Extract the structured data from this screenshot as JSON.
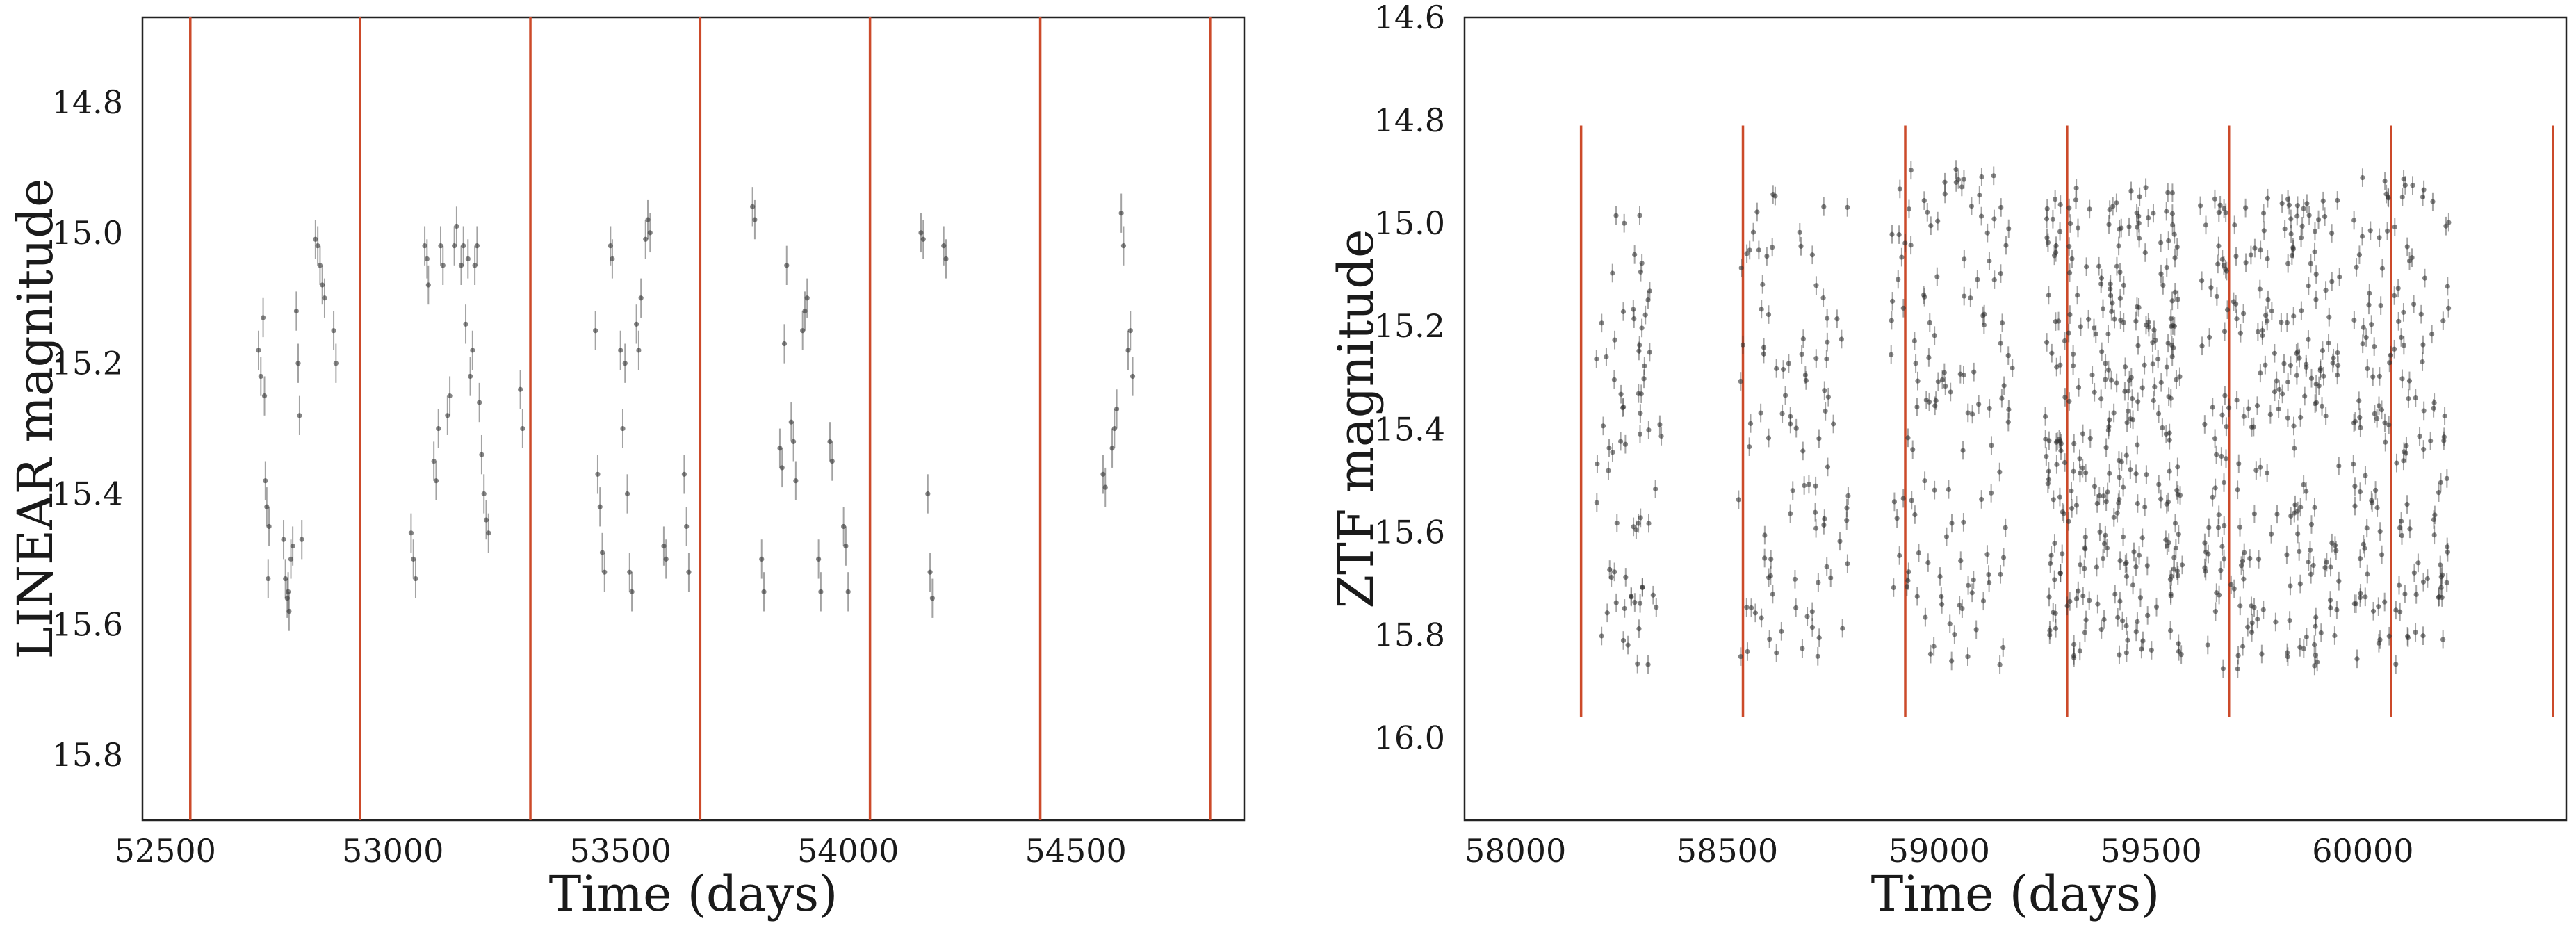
{
  "chart_data": [
    {
      "type": "scatter",
      "id": "linear",
      "xlabel": "Time (days)",
      "ylabel": "LINEAR magnitude",
      "xlim": [
        52450,
        54870
      ],
      "ylim": [
        15.9,
        14.67
      ],
      "y_inverted": true,
      "grid": false,
      "legend": "none",
      "xticks": [
        52500,
        53000,
        53500,
        54000,
        54500
      ],
      "yticks": [
        14.8,
        15.0,
        15.2,
        15.4,
        15.6,
        15.8
      ],
      "xtick_labels": [
        "52500",
        "53000",
        "53500",
        "54000",
        "54500"
      ],
      "ytick_labels": [
        "14.8",
        "15.0",
        "15.2",
        "15.4",
        "15.6",
        "15.8"
      ],
      "vlines": [
        52555,
        52928,
        53302,
        53675,
        54048,
        54422,
        54795
      ],
      "vline_color": "#cc4a2a",
      "point_color": "#333333",
      "err": 0.03,
      "points": [
        [
          52705,
          15.18
        ],
        [
          52710,
          15.22
        ],
        [
          52715,
          15.13
        ],
        [
          52718,
          15.25
        ],
        [
          52720,
          15.38
        ],
        [
          52723,
          15.42
        ],
        [
          52726,
          15.53
        ],
        [
          52728,
          15.45
        ],
        [
          52760,
          15.47
        ],
        [
          52764,
          15.53
        ],
        [
          52768,
          15.56
        ],
        [
          52770,
          15.55
        ],
        [
          52772,
          15.58
        ],
        [
          52776,
          15.5
        ],
        [
          52780,
          15.48
        ],
        [
          52788,
          15.12
        ],
        [
          52792,
          15.2
        ],
        [
          52795,
          15.28
        ],
        [
          52800,
          15.47
        ],
        [
          52830,
          15.01
        ],
        [
          52835,
          15.02
        ],
        [
          52840,
          15.05
        ],
        [
          52845,
          15.08
        ],
        [
          52850,
          15.1
        ],
        [
          52870,
          15.15
        ],
        [
          52875,
          15.2
        ],
        [
          53040,
          15.46
        ],
        [
          53045,
          15.5
        ],
        [
          53050,
          15.53
        ],
        [
          53070,
          15.02
        ],
        [
          53075,
          15.04
        ],
        [
          53078,
          15.08
        ],
        [
          53090,
          15.35
        ],
        [
          53095,
          15.38
        ],
        [
          53100,
          15.3
        ],
        [
          53105,
          15.02
        ],
        [
          53110,
          15.05
        ],
        [
          53120,
          15.28
        ],
        [
          53125,
          15.25
        ],
        [
          53135,
          15.02
        ],
        [
          53140,
          14.99
        ],
        [
          53150,
          15.05
        ],
        [
          53155,
          15.02
        ],
        [
          53160,
          15.14
        ],
        [
          53165,
          15.04
        ],
        [
          53170,
          15.22
        ],
        [
          53175,
          15.18
        ],
        [
          53180,
          15.05
        ],
        [
          53185,
          15.02
        ],
        [
          53190,
          15.26
        ],
        [
          53195,
          15.34
        ],
        [
          53200,
          15.4
        ],
        [
          53205,
          15.44
        ],
        [
          53210,
          15.46
        ],
        [
          53280,
          15.24
        ],
        [
          53285,
          15.3
        ],
        [
          53445,
          15.15
        ],
        [
          53450,
          15.37
        ],
        [
          53455,
          15.42
        ],
        [
          53460,
          15.49
        ],
        [
          53465,
          15.52
        ],
        [
          53478,
          15.02
        ],
        [
          53482,
          15.04
        ],
        [
          53500,
          15.18
        ],
        [
          53505,
          15.3
        ],
        [
          53510,
          15.2
        ],
        [
          53515,
          15.4
        ],
        [
          53520,
          15.52
        ],
        [
          53525,
          15.55
        ],
        [
          53535,
          15.14
        ],
        [
          53540,
          15.18
        ],
        [
          53545,
          15.1
        ],
        [
          53555,
          15.01
        ],
        [
          53560,
          14.98
        ],
        [
          53565,
          15.0
        ],
        [
          53595,
          15.48
        ],
        [
          53600,
          15.5
        ],
        [
          53640,
          15.37
        ],
        [
          53645,
          15.45
        ],
        [
          53650,
          15.52
        ],
        [
          53790,
          14.96
        ],
        [
          53795,
          14.98
        ],
        [
          53810,
          15.5
        ],
        [
          53815,
          15.55
        ],
        [
          53850,
          15.33
        ],
        [
          53855,
          15.36
        ],
        [
          53860,
          15.17
        ],
        [
          53865,
          15.05
        ],
        [
          53875,
          15.29
        ],
        [
          53880,
          15.32
        ],
        [
          53885,
          15.38
        ],
        [
          53900,
          15.15
        ],
        [
          53905,
          15.12
        ],
        [
          53910,
          15.1
        ],
        [
          53935,
          15.5
        ],
        [
          53940,
          15.55
        ],
        [
          53960,
          15.32
        ],
        [
          53965,
          15.35
        ],
        [
          53990,
          15.45
        ],
        [
          53995,
          15.48
        ],
        [
          54000,
          15.55
        ],
        [
          54160,
          15.0
        ],
        [
          54165,
          15.01
        ],
        [
          54175,
          15.4
        ],
        [
          54180,
          15.52
        ],
        [
          54185,
          15.56
        ],
        [
          54210,
          15.02
        ],
        [
          54215,
          15.04
        ],
        [
          54560,
          15.37
        ],
        [
          54565,
          15.39
        ],
        [
          54580,
          15.33
        ],
        [
          54585,
          15.3
        ],
        [
          54590,
          15.27
        ],
        [
          54600,
          14.97
        ],
        [
          54605,
          15.02
        ],
        [
          54615,
          15.18
        ],
        [
          54620,
          15.15
        ],
        [
          54625,
          15.22
        ]
      ]
    },
    {
      "type": "scatter",
      "id": "ztf",
      "xlabel": "Time (days)",
      "ylabel": "ZTF magnitude",
      "xlim": [
        57880,
        60480
      ],
      "ylim": [
        16.16,
        14.6
      ],
      "y_inverted": true,
      "grid": false,
      "legend": "none",
      "xticks": [
        58000,
        58500,
        59000,
        59500,
        60000
      ],
      "yticks": [
        14.6,
        14.8,
        15.0,
        15.2,
        15.4,
        15.6,
        15.8,
        16.0
      ],
      "xtick_labels": [
        "58000",
        "58500",
        "59000",
        "59500",
        "60000"
      ],
      "ytick_labels": [
        "14.6",
        "14.8",
        "15.0",
        "15.2",
        "15.4",
        "15.6",
        "15.8",
        "16.0"
      ],
      "vlines": [
        58155,
        58537,
        58920,
        59302,
        59684,
        60067,
        60449
      ],
      "vline_ymin": 15.96,
      "vline_ymax": 14.81,
      "vline_color": "#cc4a2a",
      "point_color": "#333333",
      "err": 0.018,
      "seasons": [
        {
          "x_start": 58190,
          "x_end": 58345,
          "n": 70,
          "y_min": 14.98,
          "y_max": 15.86
        },
        {
          "x_start": 58520,
          "x_end": 58790,
          "n": 95,
          "y_min": 14.94,
          "y_max": 15.85
        },
        {
          "x_start": 58885,
          "x_end": 59175,
          "n": 130,
          "y_min": 14.89,
          "y_max": 15.86
        },
        {
          "x_start": 59250,
          "x_end": 59575,
          "n": 300,
          "y_min": 14.93,
          "y_max": 15.87
        },
        {
          "x_start": 59615,
          "x_end": 59945,
          "n": 230,
          "y_min": 14.95,
          "y_max": 15.87
        },
        {
          "x_start": 59975,
          "x_end": 60205,
          "n": 150,
          "y_min": 14.91,
          "y_max": 15.86
        }
      ]
    }
  ]
}
